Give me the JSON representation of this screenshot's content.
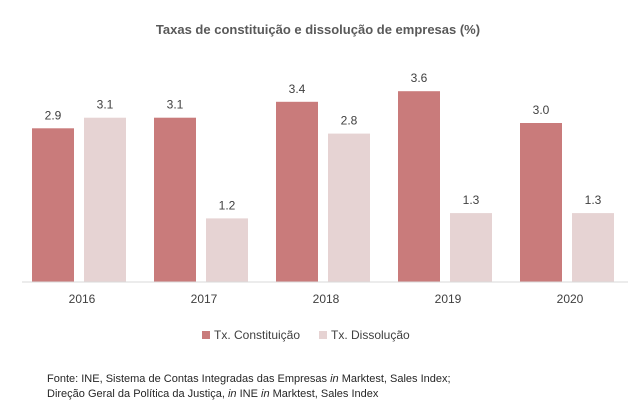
{
  "chart_data": {
    "type": "bar",
    "title": "Taxas de constituição e dissolução de empresas (%)",
    "categories": [
      "2016",
      "2017",
      "2018",
      "2019",
      "2020"
    ],
    "series": [
      {
        "name": "Tx. Constituição",
        "values": [
          2.9,
          3.1,
          3.4,
          3.6,
          3.0
        ],
        "labels": [
          "2.9",
          "3.1",
          "3.4",
          "3.6",
          "3.0"
        ],
        "color": "#C97B7B"
      },
      {
        "name": "Tx. Dissolução",
        "values": [
          3.1,
          1.2,
          2.8,
          1.3,
          1.3
        ],
        "labels": [
          "3.1",
          "1.2",
          "2.8",
          "1.3",
          "1.3"
        ],
        "color": "#E6D3D3"
      }
    ],
    "xlabel": "",
    "ylabel": "",
    "ylim": [
      0,
      4
    ],
    "grid": false,
    "legend_position": "bottom"
  },
  "source": {
    "line1_a": "Fonte: INE, Sistema de Contas Integradas das Empresas ",
    "line1_em": "in",
    "line1_b": " Marktest, Sales Index;",
    "line2_a": "Direção Geral da Política da Justiça, ",
    "line2_em1": "in",
    "line2_b": " INE ",
    "line2_em2": "in",
    "line2_c": " Marktest, Sales Index"
  },
  "colors": {
    "axis": "#D9D9D9"
  }
}
